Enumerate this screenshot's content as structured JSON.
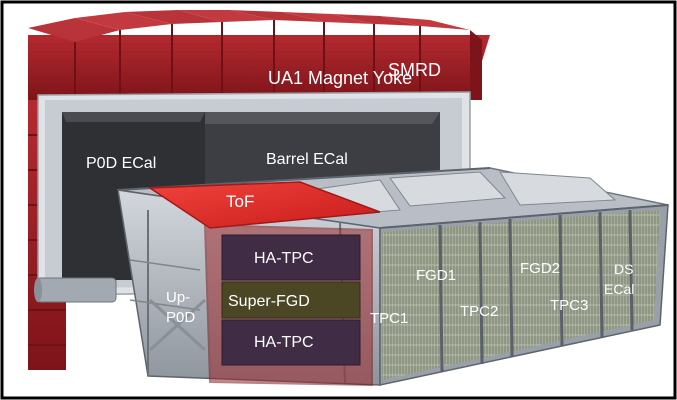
{
  "colors": {
    "yoke": "#a11f26",
    "yoke_dark": "#6e1015",
    "frame_gray": "#c9ced3",
    "ecal_dark": "#2e2f33",
    "detector_body": "#b3b9c2",
    "tof": "#e82a26",
    "hatpc": "#402c45",
    "superfgd": "#4b4725",
    "highlight_frame": "#9c2a2e"
  },
  "labels": {
    "magnet": "UA1 Magnet Yoke",
    "smrd": "SMRD",
    "p0d_ecal": "P0D ECal",
    "barrel_ecal": "Barrel ECal",
    "tof": "ToF",
    "hatpc_top": "HA-TPC",
    "superfgd": "Super-FGD",
    "hatpc_bottom": "HA-TPC",
    "up_p0d_line1": "Up-",
    "up_p0d_line2": "P0D",
    "fgd1": "FGD1",
    "fgd2": "FGD2",
    "tpc1": "TPC1",
    "tpc2": "TPC2",
    "tpc3": "TPC3",
    "ds_ecal_line1": "DS",
    "ds_ecal_line2": "ECal"
  }
}
